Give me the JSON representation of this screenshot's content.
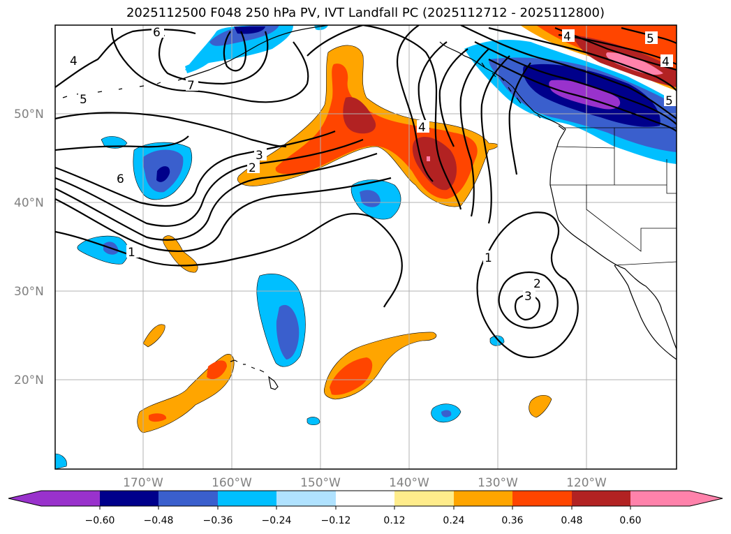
{
  "title": "2025112500 F048 250 hPa PV, IVT Landfall PC (2025112712 - 2025112800)",
  "map": {
    "lat_labels": [
      "50°N",
      "40°N",
      "30°N",
      "20°N"
    ],
    "lon_labels": [
      "170°W",
      "160°W",
      "150°W",
      "140°W",
      "130°W",
      "120°W"
    ],
    "gridlines": true,
    "contour_labels": [
      "4",
      "5",
      "6",
      "7",
      "3",
      "2",
      "6",
      "1",
      "4",
      "1",
      "2",
      "3",
      "4",
      "5",
      "4",
      "5"
    ]
  },
  "colorbar": {
    "ticks": [
      "−0.60",
      "−0.48",
      "−0.36",
      "−0.24",
      "−0.12",
      "0.12",
      "0.24",
      "0.36",
      "0.48",
      "0.60"
    ],
    "colors": [
      "#9932cc",
      "#00008b",
      "#3a5fcd",
      "#00bfff",
      "#b0e2ff",
      "#ffffff",
      "#ffec8b",
      "#ffa500",
      "#ff4500",
      "#b22222",
      "#ff82ab"
    ],
    "extend": "both"
  }
}
